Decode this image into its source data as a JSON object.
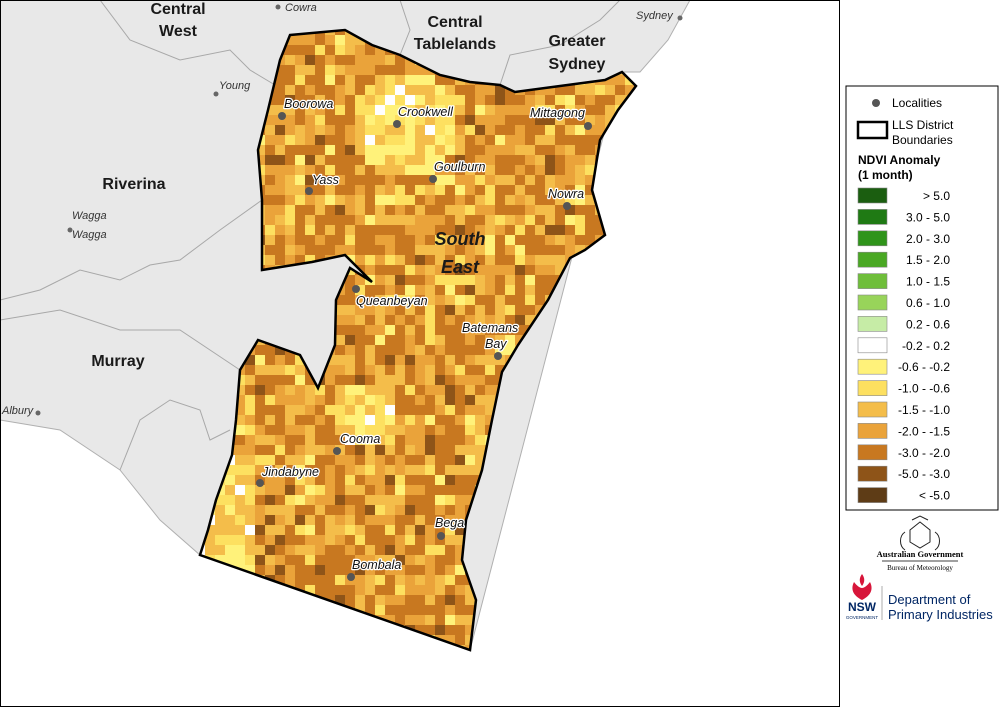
{
  "regions": [
    {
      "lines": [
        "Central",
        "West"
      ]
    },
    {
      "lines": [
        "Central",
        "Tablelands"
      ]
    },
    {
      "lines": [
        "Greater",
        "Sydney"
      ]
    },
    {
      "lines": [
        "Riverina"
      ]
    },
    {
      "lines": [
        "Murray"
      ]
    },
    {
      "lines": [
        "South",
        "East"
      ]
    }
  ],
  "outer_localities": [
    {
      "lines": [
        "Cowra"
      ]
    },
    {
      "lines": [
        "Sydney"
      ]
    },
    {
      "lines": [
        "Young"
      ]
    },
    {
      "lines": [
        "Wagga",
        "Wagga"
      ]
    },
    {
      "lines": [
        "Albury"
      ]
    }
  ],
  "localities": [
    {
      "lines": [
        "Boorowa"
      ]
    },
    {
      "lines": [
        "Crookwell"
      ]
    },
    {
      "lines": [
        "Mittagong"
      ]
    },
    {
      "lines": [
        "Yass"
      ]
    },
    {
      "lines": [
        "Goulburn"
      ]
    },
    {
      "lines": [
        "Nowra"
      ]
    },
    {
      "lines": [
        "Queanbeyan"
      ]
    },
    {
      "lines": [
        "Batemans",
        "Bay"
      ]
    },
    {
      "lines": [
        "Cooma"
      ]
    },
    {
      "lines": [
        "Jindabyne"
      ]
    },
    {
      "lines": [
        "Bega"
      ]
    },
    {
      "lines": [
        "Bombala"
      ]
    }
  ],
  "legend": {
    "localities": "Localities",
    "boundaries": [
      "LLS District",
      "Boundaries"
    ],
    "title": [
      "NDVI Anomaly",
      "(1 month)"
    ],
    "items": [
      {
        "label": "> 5.0",
        "color": "#1b5e10"
      },
      {
        "label": "3.0 - 5.0",
        "color": "#1f7a14"
      },
      {
        "label": "2.0 - 3.0",
        "color": "#2f941a"
      },
      {
        "label": "1.5 - 2.0",
        "color": "#4aa824"
      },
      {
        "label": "1.0 - 1.5",
        "color": "#6fbe3a"
      },
      {
        "label": "0.6 - 1.0",
        "color": "#98d45a"
      },
      {
        "label": "0.2 - 0.6",
        "color": "#c6eca6"
      },
      {
        "label": "-0.2 - 0.2",
        "color": "#ffffff"
      },
      {
        "label": "-0.6 - -0.2",
        "color": "#fff27a"
      },
      {
        "label": "-1.0 - -0.6",
        "color": "#fde060"
      },
      {
        "label": "-1.5 - -1.0",
        "color": "#f4bd4a"
      },
      {
        "label": "-2.0 - -1.5",
        "color": "#eaa33a"
      },
      {
        "label": "-3.0 - -2.0",
        "color": "#c87820"
      },
      {
        "label": "-5.0 - -3.0",
        "color": "#8e5418"
      },
      {
        "label": "< -5.0",
        "color": "#5e3c16"
      }
    ]
  },
  "logos": {
    "australian_government": "Australian Government",
    "bom": "Bureau of Meteorology",
    "nsw": "NSW",
    "nsw_government": "GOVERNMENT",
    "dpi": [
      "Department of",
      "Primary Industries"
    ]
  }
}
